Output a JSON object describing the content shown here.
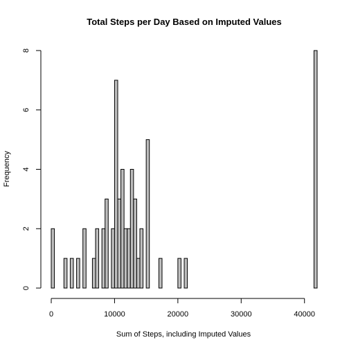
{
  "chart_data": {
    "type": "bar",
    "subtype": "histogram",
    "title": "Total Steps per Day Based on Imputed Values",
    "xlabel": "Sum of Steps, including Imputed Values",
    "ylabel": "Frequency",
    "xlim": [
      0,
      42000
    ],
    "ylim": [
      0,
      8
    ],
    "bin_width": 500,
    "x_ticks": [
      0,
      10000,
      20000,
      30000,
      40000
    ],
    "x_tick_labels": [
      "0",
      "10000",
      "20000",
      "30000",
      "40000"
    ],
    "y_ticks": [
      0,
      2,
      4,
      6,
      8
    ],
    "y_tick_labels": [
      "0",
      "2",
      "4",
      "6",
      "8"
    ],
    "bins": [
      {
        "start": 0,
        "end": 500,
        "count": 2
      },
      {
        "start": 2000,
        "end": 2500,
        "count": 1
      },
      {
        "start": 3000,
        "end": 3500,
        "count": 1
      },
      {
        "start": 4000,
        "end": 4500,
        "count": 1
      },
      {
        "start": 5000,
        "end": 5500,
        "count": 2
      },
      {
        "start": 6500,
        "end": 7000,
        "count": 1
      },
      {
        "start": 7000,
        "end": 7500,
        "count": 2
      },
      {
        "start": 8000,
        "end": 8500,
        "count": 2
      },
      {
        "start": 8500,
        "end": 9000,
        "count": 3
      },
      {
        "start": 9500,
        "end": 10000,
        "count": 2
      },
      {
        "start": 10000,
        "end": 10500,
        "count": 7
      },
      {
        "start": 10500,
        "end": 11000,
        "count": 3
      },
      {
        "start": 11000,
        "end": 11500,
        "count": 4
      },
      {
        "start": 11500,
        "end": 12000,
        "count": 2
      },
      {
        "start": 12000,
        "end": 12500,
        "count": 2
      },
      {
        "start": 12500,
        "end": 13000,
        "count": 4
      },
      {
        "start": 13000,
        "end": 13500,
        "count": 3
      },
      {
        "start": 13500,
        "end": 14000,
        "count": 1
      },
      {
        "start": 14000,
        "end": 14500,
        "count": 2
      },
      {
        "start": 15000,
        "end": 15500,
        "count": 5
      },
      {
        "start": 17000,
        "end": 17500,
        "count": 1
      },
      {
        "start": 20000,
        "end": 20500,
        "count": 1
      },
      {
        "start": 21000,
        "end": 21500,
        "count": 1
      },
      {
        "start": 41500,
        "end": 42000,
        "count": 8
      }
    ],
    "colors": {
      "bar_fill": "#bebebe",
      "bar_stroke": "#000000",
      "axis": "#000000"
    },
    "grid": false,
    "legend": "none"
  }
}
